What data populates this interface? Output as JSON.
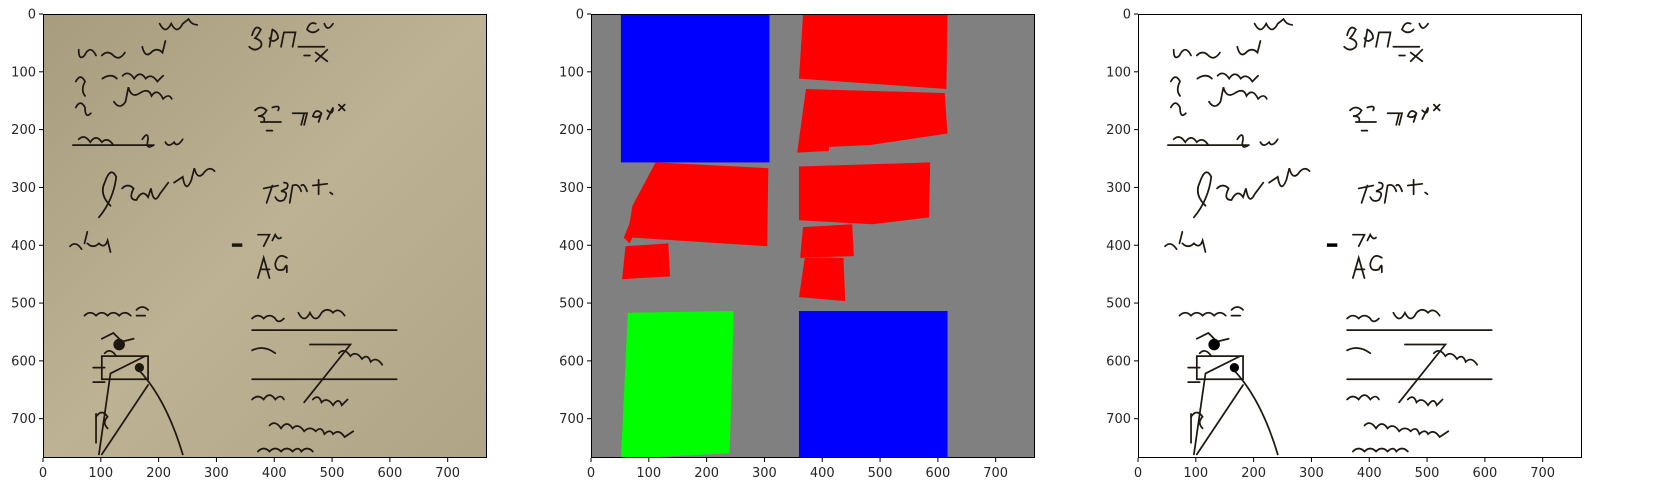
{
  "panels": [
    {
      "kind": "manuscript-photo",
      "ticks_x": [
        "0",
        "100",
        "200",
        "300",
        "400",
        "500",
        "600",
        "700"
      ],
      "ticks_y": [
        "0",
        "100",
        "200",
        "300",
        "400",
        "500",
        "600",
        "700"
      ]
    },
    {
      "kind": "segmentation-mask",
      "ticks_x": [
        "0",
        "100",
        "200",
        "300",
        "400",
        "500",
        "600",
        "700"
      ],
      "ticks_y": [
        "0",
        "100",
        "200",
        "300",
        "400",
        "500",
        "600",
        "700"
      ]
    },
    {
      "kind": "binarized-manuscript",
      "ticks_x": [
        "0",
        "100",
        "200",
        "300",
        "400",
        "500",
        "600",
        "700"
      ],
      "ticks_y": [
        "0",
        "100",
        "200",
        "300",
        "400",
        "500",
        "600",
        "700"
      ]
    }
  ],
  "axis_range": [
    0,
    768
  ],
  "colors": {
    "mask_background": "#808080",
    "mask_red": "#ff0000",
    "mask_blue": "#0000ff",
    "mask_green": "#00ff00",
    "paper": "#b5a98a",
    "ink": "#1e1810"
  }
}
